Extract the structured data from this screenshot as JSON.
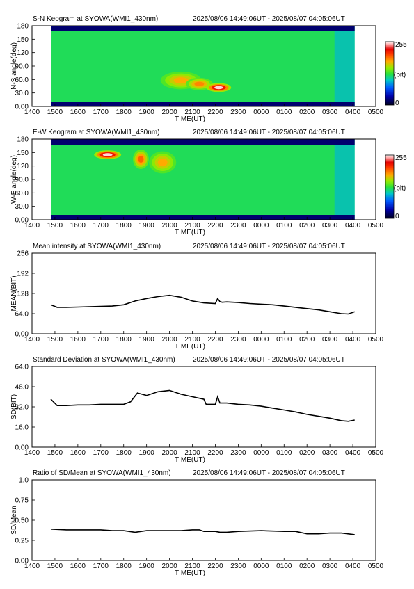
{
  "x_ticks": [
    "1400",
    "1500",
    "1600",
    "1700",
    "1800",
    "1900",
    "2000",
    "2100",
    "2200",
    "2300",
    "0000",
    "0100",
    "0200",
    "0300",
    "0400",
    "0500"
  ],
  "time_label": "TIME(UT)",
  "panels": [
    {
      "kind": "keogram",
      "title": "S-N Keogram at SYOWA(WMI1_430nm)",
      "range": "2025/08/06 14:49:06UT - 2025/08/07 04:05:06UT",
      "ylabel": "N-S angle(deg)",
      "y_ticks": [
        "180",
        "150",
        "120",
        "90.0",
        "60.0",
        "30.0",
        "0.00"
      ],
      "colorbar": {
        "max": "255",
        "unit": "(bit)",
        "min": "0"
      }
    },
    {
      "kind": "keogram",
      "title": "E-W Keogram at SYOWA(WMI1_430nm)",
      "range": "2025/08/06 14:49:06UT - 2025/08/07 04:05:06UT",
      "ylabel": "W-E angle(deg)",
      "y_ticks": [
        "180",
        "150",
        "120",
        "90.0",
        "60.0",
        "30.0",
        "0.00"
      ],
      "colorbar": {
        "max": "255",
        "unit": "(bit)",
        "min": "0"
      }
    },
    {
      "kind": "line",
      "title": "Mean intensity at SYOWA(WMI1_430nm)",
      "range": "2025/08/06 14:49:06UT - 2025/08/07 04:05:06UT",
      "ylabel": "MEAN(BIT)",
      "y_ticks": [
        "256",
        "192",
        "128",
        "64.0",
        "0.00"
      ]
    },
    {
      "kind": "line",
      "title": "Standard Deviation at SYOWA(WMI1_430nm)",
      "range": "2025/08/06 14:49:06UT - 2025/08/07 04:05:06UT",
      "ylabel": "SD(BIT)",
      "y_ticks": [
        "64.0",
        "48.0",
        "32.0",
        "16.0",
        "0.00"
      ]
    },
    {
      "kind": "line",
      "title": "Ratio of SD/Mean at SYOWA(WMI1_430nm)",
      "range": "2025/08/06 14:49:06UT - 2025/08/07 04:05:06UT",
      "ylabel": "SD/Mean",
      "y_ticks": [
        "1.0",
        "0.75",
        "0.50",
        "0.25",
        "0.00"
      ]
    }
  ],
  "chart_data": [
    {
      "type": "heatmap",
      "title": "S-N Keogram at SYOWA(WMI1_430nm)",
      "xlabel": "TIME(UT)",
      "ylabel": "N-S angle(deg)",
      "x_range_hours": [
        14,
        29
      ],
      "y_range": [
        0,
        180
      ],
      "data_start_hour": 14.82,
      "data_end_hour": 28.08,
      "value_range": [
        0,
        255
      ],
      "colorbar_unit": "(bit)",
      "base_intensity": 120,
      "blobs": [
        {
          "time_hour": 20.5,
          "angle": 58,
          "value": 175,
          "time_width": 0.9,
          "angle_width": 20
        },
        {
          "time_hour": 21.3,
          "angle": 50,
          "value": 185,
          "time_width": 0.6,
          "angle_width": 14
        },
        {
          "time_hour": 22.15,
          "angle": 42,
          "value": 250,
          "time_width": 0.55,
          "angle_width": 10
        }
      ]
    },
    {
      "type": "heatmap",
      "title": "E-W Keogram at SYOWA(WMI1_430nm)",
      "xlabel": "TIME(UT)",
      "ylabel": "W-E angle(deg)",
      "x_range_hours": [
        14,
        29
      ],
      "y_range": [
        0,
        180
      ],
      "data_start_hour": 14.82,
      "data_end_hour": 28.08,
      "value_range": [
        0,
        255
      ],
      "colorbar_unit": "(bit)",
      "base_intensity": 120,
      "blobs": [
        {
          "time_hour": 17.3,
          "angle": 145,
          "value": 250,
          "time_width": 0.6,
          "angle_width": 10
        },
        {
          "time_hour": 18.75,
          "angle": 135,
          "value": 195,
          "time_width": 0.35,
          "angle_width": 22
        },
        {
          "time_hour": 19.7,
          "angle": 128,
          "value": 175,
          "time_width": 0.6,
          "angle_width": 25
        }
      ]
    },
    {
      "type": "line",
      "title": "Mean intensity at SYOWA(WMI1_430nm)",
      "xlabel": "TIME(UT)",
      "ylabel": "MEAN(BIT)",
      "x_range_hours": [
        14,
        29
      ],
      "ylim": [
        0,
        256
      ],
      "x": [
        14.82,
        15.1,
        15.5,
        16.0,
        16.5,
        17.0,
        17.5,
        18.0,
        18.5,
        19.0,
        19.5,
        20.0,
        20.5,
        21.0,
        21.5,
        22.0,
        22.1,
        22.2,
        22.3,
        22.5,
        23.0,
        23.5,
        24.0,
        24.5,
        25.0,
        25.5,
        26.0,
        26.5,
        27.0,
        27.5,
        27.8,
        28.08
      ],
      "values": [
        92,
        84,
        84,
        85,
        86,
        87,
        88,
        92,
        104,
        112,
        118,
        122,
        116,
        104,
        98,
        96,
        112,
        102,
        100,
        101,
        99,
        96,
        94,
        92,
        88,
        84,
        80,
        76,
        70,
        64,
        63,
        70
      ]
    },
    {
      "type": "line",
      "title": "Standard Deviation at SYOWA(WMI1_430nm)",
      "xlabel": "TIME(UT)",
      "ylabel": "SD(BIT)",
      "x_range_hours": [
        14,
        29
      ],
      "ylim": [
        0,
        64
      ],
      "x": [
        14.82,
        15.1,
        15.5,
        16.0,
        16.5,
        17.0,
        17.5,
        18.0,
        18.3,
        18.6,
        19.0,
        19.5,
        20.0,
        20.5,
        21.0,
        21.5,
        21.6,
        22.0,
        22.1,
        22.2,
        22.5,
        23.0,
        23.5,
        24.0,
        24.5,
        25.0,
        25.5,
        26.0,
        26.5,
        27.0,
        27.5,
        27.8,
        28.08
      ],
      "values": [
        38,
        33,
        33,
        33.5,
        33.5,
        34,
        34,
        34,
        36,
        43,
        41,
        44,
        45,
        42,
        40,
        38,
        34,
        34,
        40,
        35,
        35,
        34,
        33.5,
        32.5,
        31,
        29.5,
        28,
        26,
        24.5,
        23,
        21,
        20.5,
        21.5
      ]
    },
    {
      "type": "line",
      "title": "Ratio of SD/Mean at SYOWA(WMI1_430nm)",
      "xlabel": "TIME(UT)",
      "ylabel": "SD/Mean",
      "x_range_hours": [
        14,
        29
      ],
      "ylim": [
        0,
        1.0
      ],
      "x": [
        14.82,
        15.5,
        16.0,
        16.5,
        17.0,
        17.5,
        18.0,
        18.5,
        19.0,
        19.5,
        20.0,
        20.5,
        21.0,
        21.3,
        21.5,
        22.0,
        22.2,
        22.5,
        23.0,
        24.0,
        25.0,
        25.5,
        26.0,
        26.5,
        27.0,
        27.5,
        28.08
      ],
      "values": [
        0.39,
        0.38,
        0.38,
        0.38,
        0.38,
        0.37,
        0.37,
        0.35,
        0.37,
        0.37,
        0.37,
        0.37,
        0.38,
        0.38,
        0.36,
        0.36,
        0.35,
        0.35,
        0.36,
        0.37,
        0.36,
        0.36,
        0.33,
        0.33,
        0.34,
        0.34,
        0.32
      ]
    }
  ]
}
